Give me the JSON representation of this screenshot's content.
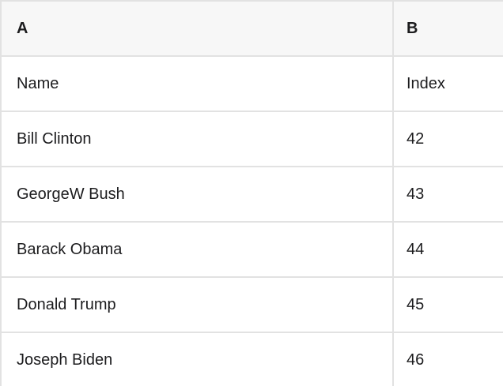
{
  "table": {
    "columns": [
      {
        "key": "A",
        "label": "A"
      },
      {
        "key": "B",
        "label": "B"
      }
    ],
    "rows": [
      {
        "a": "Name",
        "b": "Index"
      },
      {
        "a": "Bill Clinton",
        "b": "42"
      },
      {
        "a": "GeorgeW Bush",
        "b": "43"
      },
      {
        "a": "Barack Obama",
        "b": "44"
      },
      {
        "a": "Donald Trump",
        "b": "45"
      },
      {
        "a": "Joseph Biden",
        "b": "46"
      }
    ]
  },
  "colors": {
    "header_background": "#f7f7f7",
    "row_background": "#ffffff",
    "gridline": "#e2e2e2",
    "text": "#1c1c1e"
  }
}
